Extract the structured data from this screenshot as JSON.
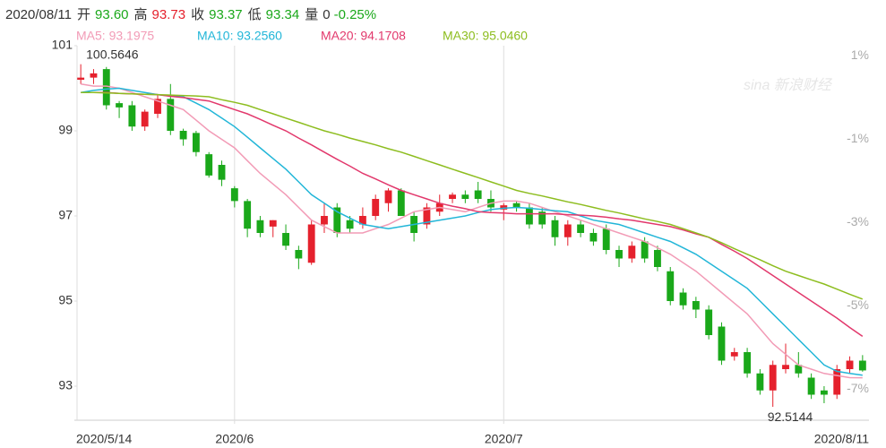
{
  "header": {
    "date": "2020/08/11",
    "items": [
      {
        "label": "开",
        "value": "93.60",
        "color": "#1aa81a"
      },
      {
        "label": "高",
        "value": "93.73",
        "color": "#e5212d"
      },
      {
        "label": "收",
        "value": "93.37",
        "color": "#1aa81a"
      },
      {
        "label": "低",
        "value": "93.34",
        "color": "#1aa81a"
      },
      {
        "label": "量",
        "value": "0",
        "color": "#333333"
      },
      {
        "label": null,
        "value": "-0.25%",
        "color": "#1aa81a"
      }
    ]
  },
  "watermark": "sina 新浪财经",
  "chart_data": {
    "type": "candlestick",
    "categories": [
      "2020/5/14",
      null,
      null,
      null,
      null,
      null,
      null,
      null,
      null,
      null,
      null,
      null,
      "2020/6",
      null,
      null,
      null,
      null,
      null,
      null,
      null,
      null,
      null,
      null,
      null,
      null,
      null,
      null,
      null,
      null,
      null,
      null,
      null,
      null,
      "2020/7",
      null,
      null,
      null,
      null,
      null,
      null,
      null,
      null,
      null,
      null,
      null,
      null,
      null,
      null,
      null,
      null,
      null,
      null,
      null,
      null,
      null,
      null,
      null,
      null,
      null,
      null,
      null,
      "2020/8/11"
    ],
    "open": [
      100.2,
      100.25,
      100.45,
      99.65,
      99.6,
      99.1,
      99.4,
      99.75,
      99.0,
      98.95,
      98.45,
      98.2,
      97.65,
      97.35,
      96.9,
      96.75,
      96.6,
      96.2,
      95.9,
      96.8,
      97.2,
      96.9,
      96.8,
      97.0,
      97.3,
      97.6,
      97.0,
      96.8,
      97.1,
      97.4,
      97.5,
      97.6,
      97.4,
      97.15,
      97.3,
      97.2,
      97.1,
      96.9,
      96.5,
      96.8,
      96.6,
      96.7,
      96.2,
      96.0,
      96.4,
      96.2,
      95.7,
      95.2,
      95.0,
      94.8,
      94.4,
      93.7,
      93.8,
      93.3,
      92.9,
      93.4,
      93.5,
      93.2,
      92.9,
      92.8,
      93.4,
      93.6
    ],
    "high": [
      100.5646,
      100.45,
      100.5,
      99.7,
      99.7,
      99.5,
      99.85,
      100.1,
      99.05,
      99.0,
      98.5,
      98.3,
      97.7,
      97.4,
      97.0,
      96.9,
      96.8,
      96.3,
      96.9,
      97.3,
      97.3,
      97.0,
      97.2,
      97.5,
      97.65,
      97.65,
      97.1,
      97.3,
      97.5,
      97.55,
      97.6,
      97.8,
      97.6,
      97.3,
      97.35,
      97.3,
      97.2,
      97.0,
      96.9,
      96.9,
      96.7,
      96.8,
      96.3,
      96.4,
      96.5,
      96.3,
      95.8,
      95.3,
      95.1,
      94.9,
      94.5,
      93.9,
      93.9,
      93.4,
      93.6,
      94.0,
      93.8,
      93.3,
      93.0,
      93.5,
      93.7,
      93.73
    ],
    "low": [
      100.1,
      100.1,
      99.5,
      99.3,
      99.0,
      99.0,
      99.3,
      98.9,
      98.65,
      98.4,
      97.9,
      97.7,
      97.2,
      96.5,
      96.5,
      96.5,
      96.2,
      95.75,
      95.85,
      96.6,
      96.5,
      96.6,
      96.7,
      96.9,
      97.1,
      97.0,
      96.4,
      96.7,
      97.0,
      97.3,
      97.3,
      97.3,
      97.1,
      96.9,
      97.1,
      96.7,
      96.7,
      96.3,
      96.3,
      96.5,
      96.3,
      96.1,
      95.8,
      95.9,
      95.9,
      95.7,
      94.9,
      94.8,
      94.6,
      94.1,
      93.5,
      93.6,
      93.2,
      92.8,
      92.5144,
      93.3,
      93.2,
      92.7,
      92.6,
      92.7,
      93.3,
      93.34
    ],
    "close": [
      100.25,
      100.35,
      99.6,
      99.55,
      99.1,
      99.45,
      99.75,
      99.0,
      98.8,
      98.5,
      97.95,
      97.85,
      97.35,
      96.7,
      96.6,
      96.9,
      96.3,
      96.0,
      96.8,
      97.0,
      96.6,
      96.7,
      97.0,
      97.4,
      97.6,
      97.0,
      96.6,
      97.2,
      97.3,
      97.5,
      97.4,
      97.4,
      97.2,
      97.25,
      97.2,
      96.8,
      96.8,
      96.5,
      96.8,
      96.6,
      96.4,
      96.2,
      96.0,
      96.3,
      96.0,
      95.8,
      95.0,
      94.9,
      94.8,
      94.2,
      93.6,
      93.8,
      93.3,
      92.9,
      93.5,
      93.5,
      93.3,
      92.8,
      92.8,
      93.4,
      93.6,
      93.37
    ],
    "up_color": "#e5212d",
    "down_color": "#1aa81a",
    "series": [
      {
        "name": "MA5: 93.1975",
        "color": "#f29bb6",
        "values": [
          100.1,
          100.05,
          100.05,
          100.0,
          99.9,
          99.8,
          99.7,
          99.6,
          99.5,
          99.25,
          99.0,
          98.8,
          98.6,
          98.3,
          98.0,
          97.75,
          97.5,
          97.2,
          96.9,
          96.75,
          96.6,
          96.6,
          96.6,
          96.7,
          96.8,
          96.95,
          97.1,
          97.15,
          97.2,
          97.15,
          97.1,
          97.2,
          97.3,
          97.35,
          97.35,
          97.3,
          97.2,
          97.1,
          97.0,
          96.9,
          96.8,
          96.7,
          96.6,
          96.5,
          96.4,
          96.25,
          96.1,
          95.9,
          95.7,
          95.45,
          95.2,
          94.95,
          94.7,
          94.35,
          94.0,
          93.75,
          93.5,
          93.4,
          93.3,
          93.25,
          93.2,
          93.1975
        ]
      },
      {
        "name": "MA10: 93.2560",
        "color": "#22b6d8",
        "values": [
          99.9,
          99.95,
          99.98,
          100.0,
          99.95,
          99.9,
          99.85,
          99.82,
          99.8,
          99.65,
          99.5,
          99.3,
          99.1,
          98.85,
          98.6,
          98.35,
          98.1,
          97.8,
          97.5,
          97.3,
          97.1,
          96.95,
          96.8,
          96.75,
          96.7,
          96.75,
          96.8,
          96.85,
          96.9,
          96.95,
          97.0,
          97.08,
          97.15,
          97.18,
          97.2,
          97.18,
          97.15,
          97.12,
          97.1,
          97.0,
          96.9,
          96.85,
          96.8,
          96.7,
          96.6,
          96.5,
          96.4,
          96.25,
          96.1,
          95.9,
          95.7,
          95.5,
          95.3,
          95.0,
          94.7,
          94.4,
          94.1,
          93.8,
          93.5,
          93.35,
          93.3,
          93.256
        ]
      },
      {
        "name": "MA20: 94.1708",
        "color": "#e2386c",
        "values": [
          99.9,
          99.9,
          99.9,
          99.88,
          99.87,
          99.86,
          99.85,
          99.81,
          99.78,
          99.74,
          99.7,
          99.6,
          99.5,
          99.4,
          99.27,
          99.13,
          99.0,
          98.83,
          98.67,
          98.5,
          98.33,
          98.17,
          98.0,
          97.87,
          97.73,
          97.6,
          97.5,
          97.4,
          97.3,
          97.23,
          97.17,
          97.1,
          97.08,
          97.07,
          97.05,
          97.05,
          97.05,
          97.05,
          97.03,
          97.02,
          97.0,
          96.97,
          96.93,
          96.9,
          96.85,
          96.8,
          96.75,
          96.67,
          96.58,
          96.5,
          96.33,
          96.17,
          96.0,
          95.8,
          95.6,
          95.4,
          95.2,
          95.0,
          94.8,
          94.6,
          94.38,
          94.1708
        ]
      },
      {
        "name": "MA30: 95.0460",
        "color": "#8dbd1f",
        "values": [
          99.9,
          99.9,
          99.89,
          99.88,
          99.87,
          99.86,
          99.85,
          99.84,
          99.83,
          99.82,
          99.8,
          99.73,
          99.67,
          99.6,
          99.5,
          99.4,
          99.3,
          99.2,
          99.1,
          99.0,
          98.92,
          98.83,
          98.75,
          98.67,
          98.58,
          98.5,
          98.4,
          98.3,
          98.2,
          98.1,
          98.0,
          97.9,
          97.8,
          97.7,
          97.6,
          97.53,
          97.47,
          97.4,
          97.33,
          97.27,
          97.2,
          97.13,
          97.07,
          97.0,
          96.93,
          96.87,
          96.8,
          96.7,
          96.6,
          96.5,
          96.37,
          96.23,
          96.1,
          95.97,
          95.83,
          95.7,
          95.6,
          95.5,
          95.4,
          95.28,
          95.16,
          95.046
        ]
      }
    ],
    "ylim": [
      92.2,
      101
    ],
    "yticks": [
      93,
      95,
      97,
      99,
      101
    ],
    "y2lim": [
      -7.75,
      1.24
    ],
    "y2ticks": [
      {
        "value": 1,
        "label": "1%"
      },
      {
        "value": -1,
        "label": "-1%"
      },
      {
        "value": -3,
        "label": "-3%"
      },
      {
        "value": -5,
        "label": "-5%"
      },
      {
        "value": -7,
        "label": "-7%"
      }
    ]
  }
}
